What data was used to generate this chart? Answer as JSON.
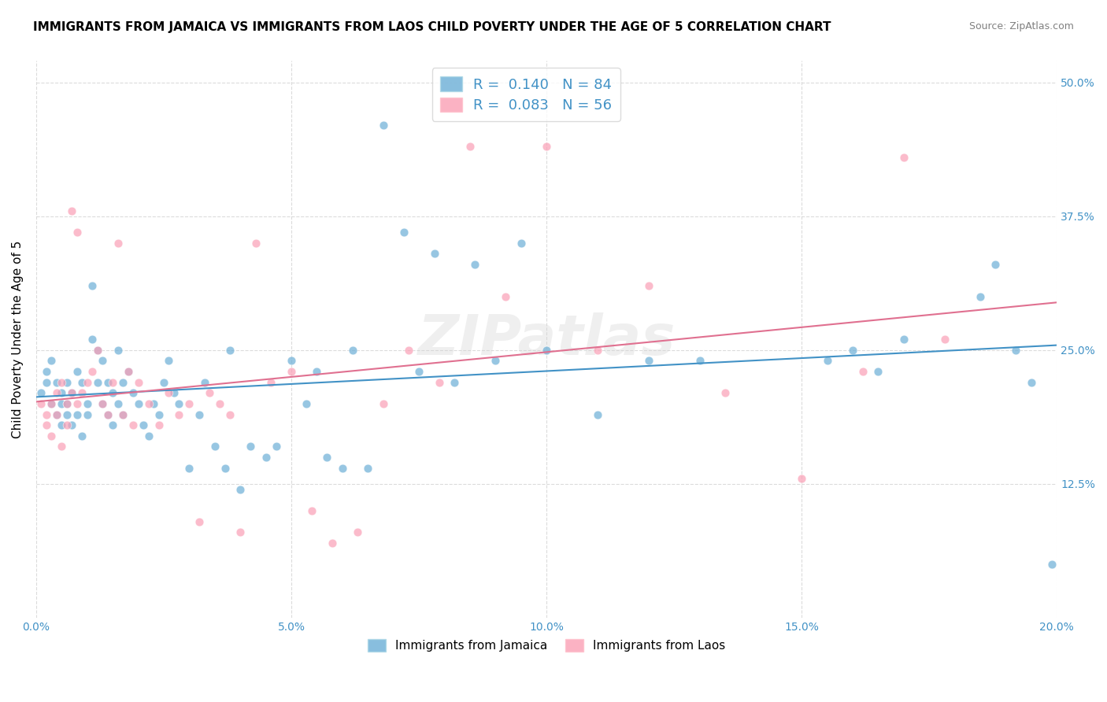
{
  "title": "IMMIGRANTS FROM JAMAICA VS IMMIGRANTS FROM LAOS CHILD POVERTY UNDER THE AGE OF 5 CORRELATION CHART",
  "source": "Source: ZipAtlas.com",
  "ylabel": "Child Poverty Under the Age of 5",
  "xlabel_ticks": [
    "0.0%",
    "5.0%",
    "10.0%",
    "15.0%",
    "20.0%"
  ],
  "ylabel_ticks": [
    "12.5%",
    "25.0%",
    "37.5%",
    "50.0%"
  ],
  "xlim": [
    0.0,
    0.2
  ],
  "ylim": [
    0.0,
    0.52
  ],
  "jamaica_R": 0.14,
  "jamaica_N": 84,
  "laos_R": 0.083,
  "laos_N": 56,
  "jamaica_color": "#6baed6",
  "laos_color": "#fa9fb5",
  "jamaica_line_color": "#4292c6",
  "laos_line_color": "#e07090",
  "background_color": "#ffffff",
  "jamaica_x": [
    0.001,
    0.002,
    0.002,
    0.003,
    0.003,
    0.004,
    0.004,
    0.005,
    0.005,
    0.005,
    0.006,
    0.006,
    0.006,
    0.007,
    0.007,
    0.008,
    0.008,
    0.009,
    0.009,
    0.01,
    0.01,
    0.011,
    0.011,
    0.012,
    0.012,
    0.013,
    0.013,
    0.014,
    0.014,
    0.015,
    0.015,
    0.016,
    0.016,
    0.017,
    0.017,
    0.018,
    0.019,
    0.02,
    0.021,
    0.022,
    0.023,
    0.024,
    0.025,
    0.026,
    0.027,
    0.028,
    0.03,
    0.032,
    0.033,
    0.035,
    0.037,
    0.038,
    0.04,
    0.042,
    0.045,
    0.047,
    0.05,
    0.053,
    0.055,
    0.057,
    0.06,
    0.062,
    0.065,
    0.068,
    0.072,
    0.075,
    0.078,
    0.082,
    0.086,
    0.09,
    0.095,
    0.1,
    0.11,
    0.12,
    0.13,
    0.155,
    0.16,
    0.165,
    0.17,
    0.185,
    0.188,
    0.192,
    0.195,
    0.199
  ],
  "jamaica_y": [
    0.21,
    0.22,
    0.23,
    0.2,
    0.24,
    0.19,
    0.22,
    0.21,
    0.18,
    0.2,
    0.22,
    0.2,
    0.19,
    0.21,
    0.18,
    0.19,
    0.23,
    0.22,
    0.17,
    0.2,
    0.19,
    0.31,
    0.26,
    0.22,
    0.25,
    0.24,
    0.2,
    0.22,
    0.19,
    0.21,
    0.18,
    0.2,
    0.25,
    0.22,
    0.19,
    0.23,
    0.21,
    0.2,
    0.18,
    0.17,
    0.2,
    0.19,
    0.22,
    0.24,
    0.21,
    0.2,
    0.14,
    0.19,
    0.22,
    0.16,
    0.14,
    0.25,
    0.12,
    0.16,
    0.15,
    0.16,
    0.24,
    0.2,
    0.23,
    0.15,
    0.14,
    0.25,
    0.14,
    0.46,
    0.36,
    0.23,
    0.34,
    0.22,
    0.33,
    0.24,
    0.35,
    0.25,
    0.19,
    0.24,
    0.24,
    0.24,
    0.25,
    0.23,
    0.26,
    0.3,
    0.33,
    0.25,
    0.22,
    0.05
  ],
  "laos_x": [
    0.001,
    0.002,
    0.002,
    0.003,
    0.003,
    0.004,
    0.004,
    0.005,
    0.005,
    0.006,
    0.006,
    0.007,
    0.007,
    0.008,
    0.008,
    0.009,
    0.01,
    0.011,
    0.012,
    0.013,
    0.014,
    0.015,
    0.016,
    0.017,
    0.018,
    0.019,
    0.02,
    0.022,
    0.024,
    0.026,
    0.028,
    0.03,
    0.032,
    0.034,
    0.036,
    0.038,
    0.04,
    0.043,
    0.046,
    0.05,
    0.054,
    0.058,
    0.063,
    0.068,
    0.073,
    0.079,
    0.085,
    0.092,
    0.1,
    0.11,
    0.12,
    0.135,
    0.15,
    0.162,
    0.17,
    0.178
  ],
  "laos_y": [
    0.2,
    0.19,
    0.18,
    0.2,
    0.17,
    0.21,
    0.19,
    0.22,
    0.16,
    0.2,
    0.18,
    0.38,
    0.21,
    0.36,
    0.2,
    0.21,
    0.22,
    0.23,
    0.25,
    0.2,
    0.19,
    0.22,
    0.35,
    0.19,
    0.23,
    0.18,
    0.22,
    0.2,
    0.18,
    0.21,
    0.19,
    0.2,
    0.09,
    0.21,
    0.2,
    0.19,
    0.08,
    0.35,
    0.22,
    0.23,
    0.1,
    0.07,
    0.08,
    0.2,
    0.25,
    0.22,
    0.44,
    0.3,
    0.44,
    0.25,
    0.31,
    0.21,
    0.13,
    0.23,
    0.43,
    0.26
  ],
  "title_fontsize": 11,
  "source_fontsize": 9,
  "tick_label_color_x": "#4292c6",
  "tick_label_color_y": "#4292c6",
  "watermark": "ZIPatlas",
  "legend_jamaica_label": "Immigrants from Jamaica",
  "legend_laos_label": "Immigrants from Laos"
}
